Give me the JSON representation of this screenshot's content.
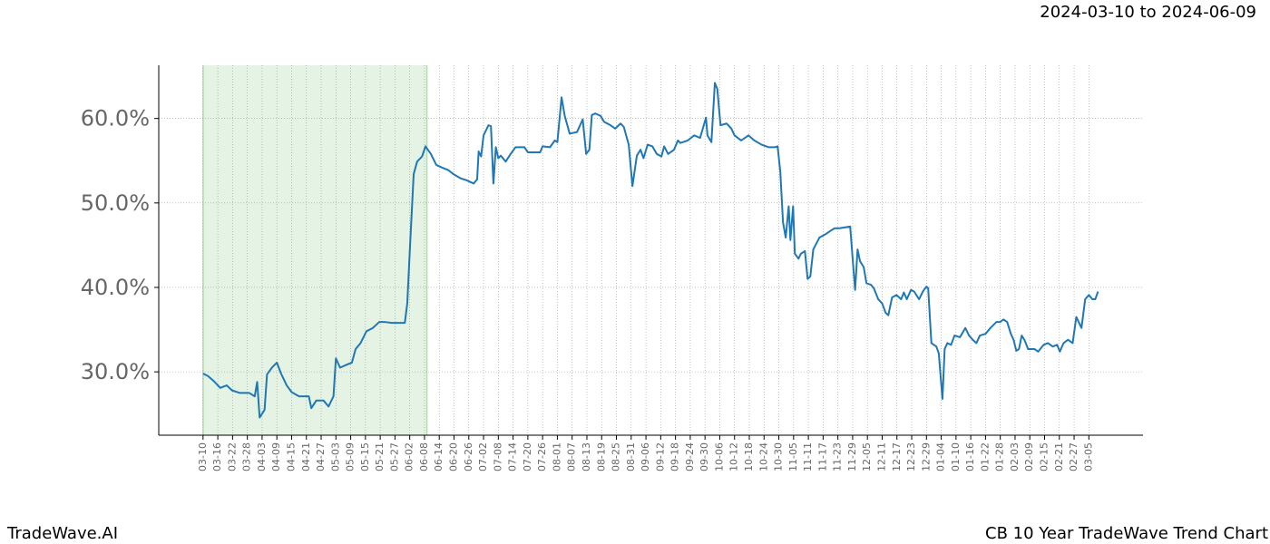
{
  "chart_data": {
    "type": "line",
    "header": "2024-03-10 to 2024-06-09",
    "footer_left": "TradeWave.AI",
    "footer_right": "CB 10 Year TradeWave Trend Chart",
    "color": "#1f77b4",
    "shaded_range": [
      0,
      91
    ],
    "shaded_color": "#2ca02c",
    "grid": true,
    "x": [
      0,
      2,
      4.4,
      7,
      9.6,
      11.8,
      15,
      18.8,
      21,
      22,
      23,
      25,
      26,
      28,
      30,
      31.7,
      34,
      36,
      39,
      43,
      44,
      46,
      49,
      51,
      53,
      54,
      55.7,
      58,
      60.5,
      62,
      64,
      66.4,
      69,
      71.6,
      74,
      76.7,
      82,
      83,
      84,
      85.6,
      87,
      89,
      90.4,
      92.6,
      94.8,
      97,
      99.6,
      101.8,
      104.8,
      107,
      110,
      111.4,
      112,
      113,
      114,
      116,
      117,
      118,
      119,
      120,
      121,
      123,
      125,
      127,
      130.6,
      132,
      137,
      138,
      141,
      143,
      144,
      145.7,
      147,
      149,
      152,
      154.3,
      155.7,
      157,
      158,
      159.4,
      161.6,
      163,
      165.6,
      167.5,
      169.7,
      171,
      173,
      174.5,
      176.3,
      177.8,
      179,
      180.7,
      182.6,
      184.4,
      186.3,
      187.4,
      189,
      191.4,
      193,
      194,
      197,
      199.6,
      202,
      204.4,
      205,
      206.6,
      208,
      209,
      210.3,
      212.8,
      214.7,
      216,
      218.7,
      221.7,
      224,
      227,
      229.8,
      232.4,
      233.5,
      234.6,
      235.7,
      236.8,
      238,
      238.7,
      239.8,
      240.5,
      242,
      243,
      244.6,
      245.7,
      246.8,
      248,
      250.5,
      253,
      255,
      256.7,
      258.6,
      263,
      264,
      265,
      266,
      267,
      268.5,
      269.6,
      271.5,
      272.6,
      274.4,
      276,
      277.4,
      278.5,
      280,
      281.8,
      283.7,
      284.8,
      286,
      287.7,
      289,
      291,
      292.5,
      294,
      294.7,
      295.5,
      296,
      298,
      299,
      300.5,
      301.4,
      302.5,
      304,
      305.4,
      307.6,
      309.8,
      311.3,
      312.8,
      314.3,
      315.7,
      318,
      320,
      322.4,
      323.9,
      325.3,
      326.8,
      328.3,
      329.4,
      330.5,
      331.6,
      332.7,
      333.8,
      335.3,
      337.9,
      339.4,
      341.6,
      343.4,
      345.3,
      347.1,
      348.2,
      349.7,
      351.5,
      353.4,
      354.9,
      357,
      358.5,
      360,
      361.4,
      362.6,
      363.7
    ],
    "values": [
      29.8,
      29.5,
      28.9,
      28.1,
      28.4,
      27.8,
      27.5,
      27.5,
      27.1,
      28.8,
      24.6,
      25.5,
      29.7,
      30.5,
      31.1,
      29.8,
      28.4,
      27.6,
      27.1,
      27.1,
      25.7,
      26.6,
      26.6,
      25.9,
      27.1,
      31.6,
      30.5,
      30.8,
      31.1,
      32.7,
      33.4,
      34.8,
      35.2,
      35.9,
      35.9,
      35.8,
      35.8,
      38.1,
      44.2,
      53.4,
      54.9,
      55.5,
      56.7,
      55.8,
      54.5,
      54.2,
      53.9,
      53.4,
      52.9,
      52.7,
      52.3,
      52.8,
      56.1,
      55.5,
      58.0,
      59.2,
      59.1,
      52.3,
      56.6,
      55.3,
      55.6,
      54.9,
      55.8,
      56.6,
      56.6,
      56.0,
      56.0,
      56.7,
      56.6,
      57.4,
      57.2,
      62.5,
      60.3,
      58.2,
      58.4,
      59.9,
      55.8,
      56.3,
      60.4,
      60.6,
      60.3,
      59.6,
      59.2,
      58.8,
      59.4,
      59.0,
      56.9,
      52.0,
      55.6,
      56.3,
      55.3,
      56.9,
      56.7,
      55.8,
      55.5,
      56.7,
      55.8,
      56.3,
      57.4,
      57.1,
      57.4,
      58.0,
      57.7,
      60.1,
      58.0,
      57.2,
      64.2,
      63.5,
      59.2,
      59.4,
      58.8,
      58.0,
      57.4,
      58.0,
      57.4,
      56.9,
      56.6,
      56.6,
      56.7,
      53.7,
      47.7,
      45.9,
      49.6,
      45.6,
      49.6,
      44.0,
      43.4,
      44.0,
      44.3,
      41.0,
      41.3,
      44.5,
      45.9,
      46.3,
      46.7,
      47.0,
      47.0,
      47.2,
      43.4,
      39.7,
      44.5,
      43.1,
      42.4,
      40.5,
      40.3,
      39.9,
      38.6,
      38.1,
      37.0,
      36.7,
      38.8,
      39.1,
      38.6,
      39.4,
      38.6,
      39.7,
      39.5,
      38.6,
      39.5,
      40.1,
      39.9,
      35.9,
      33.4,
      33.0,
      32.2,
      26.8,
      32.7,
      33.4,
      33.2,
      34.3,
      34.1,
      35.2,
      34.3,
      33.8,
      33.4,
      34.3,
      34.5,
      35.2,
      35.9,
      35.9,
      36.2,
      35.9,
      34.5,
      33.8,
      32.5,
      32.7,
      34.3,
      33.8,
      32.7,
      32.7,
      32.4,
      33.2,
      33.4,
      33.0,
      33.2,
      32.4,
      33.4,
      33.8,
      33.4,
      36.5,
      35.2,
      38.6,
      39.1,
      38.6,
      38.6,
      39.5
    ],
    "xlim": [
      -18,
      382
    ],
    "ylim": [
      22.5,
      66.3
    ],
    "yticks": [
      {
        "value": 30,
        "label": "30.0%"
      },
      {
        "value": 40,
        "label": "40.0%"
      },
      {
        "value": 50,
        "label": "50.0%"
      },
      {
        "value": 60,
        "label": "60.0%"
      }
    ],
    "xticks": [
      {
        "value": 0,
        "label": "03-10"
      },
      {
        "value": 6,
        "label": "03-16"
      },
      {
        "value": 12,
        "label": "03-22"
      },
      {
        "value": 18,
        "label": "03-28"
      },
      {
        "value": 24,
        "label": "04-03"
      },
      {
        "value": 30,
        "label": "04-09"
      },
      {
        "value": 36,
        "label": "04-15"
      },
      {
        "value": 42,
        "label": "04-21"
      },
      {
        "value": 48,
        "label": "04-27"
      },
      {
        "value": 54,
        "label": "05-03"
      },
      {
        "value": 60,
        "label": "05-09"
      },
      {
        "value": 66,
        "label": "05-15"
      },
      {
        "value": 72,
        "label": "05-21"
      },
      {
        "value": 78,
        "label": "05-27"
      },
      {
        "value": 84,
        "label": "06-02"
      },
      {
        "value": 90,
        "label": "06-08"
      },
      {
        "value": 96,
        "label": "06-14"
      },
      {
        "value": 102,
        "label": "06-20"
      },
      {
        "value": 108,
        "label": "06-26"
      },
      {
        "value": 114,
        "label": "07-02"
      },
      {
        "value": 120,
        "label": "07-08"
      },
      {
        "value": 126,
        "label": "07-14"
      },
      {
        "value": 132,
        "label": "07-20"
      },
      {
        "value": 138,
        "label": "07-26"
      },
      {
        "value": 144,
        "label": "08-01"
      },
      {
        "value": 150,
        "label": "08-07"
      },
      {
        "value": 156,
        "label": "08-13"
      },
      {
        "value": 162,
        "label": "08-19"
      },
      {
        "value": 168,
        "label": "08-25"
      },
      {
        "value": 174,
        "label": "08-31"
      },
      {
        "value": 180,
        "label": "09-06"
      },
      {
        "value": 186,
        "label": "09-12"
      },
      {
        "value": 192,
        "label": "09-18"
      },
      {
        "value": 198,
        "label": "09-24"
      },
      {
        "value": 204,
        "label": "09-30"
      },
      {
        "value": 210,
        "label": "10-06"
      },
      {
        "value": 216,
        "label": "10-12"
      },
      {
        "value": 222,
        "label": "10-18"
      },
      {
        "value": 228,
        "label": "10-24"
      },
      {
        "value": 234,
        "label": "10-30"
      },
      {
        "value": 240,
        "label": "11-05"
      },
      {
        "value": 246,
        "label": "11-11"
      },
      {
        "value": 252,
        "label": "11-17"
      },
      {
        "value": 258,
        "label": "11-23"
      },
      {
        "value": 264,
        "label": "11-29"
      },
      {
        "value": 270,
        "label": "12-05"
      },
      {
        "value": 276,
        "label": "12-11"
      },
      {
        "value": 282,
        "label": "12-17"
      },
      {
        "value": 288,
        "label": "12-23"
      },
      {
        "value": 294,
        "label": "12-29"
      },
      {
        "value": 300,
        "label": "01-04"
      },
      {
        "value": 306,
        "label": "01-10"
      },
      {
        "value": 312,
        "label": "01-16"
      },
      {
        "value": 318,
        "label": "01-22"
      },
      {
        "value": 324,
        "label": "01-28"
      },
      {
        "value": 330,
        "label": "02-03"
      },
      {
        "value": 336,
        "label": "02-09"
      },
      {
        "value": 342,
        "label": "02-15"
      },
      {
        "value": 348,
        "label": "02-21"
      },
      {
        "value": 354,
        "label": "02-27"
      },
      {
        "value": 360,
        "label": "03-05"
      }
    ]
  }
}
